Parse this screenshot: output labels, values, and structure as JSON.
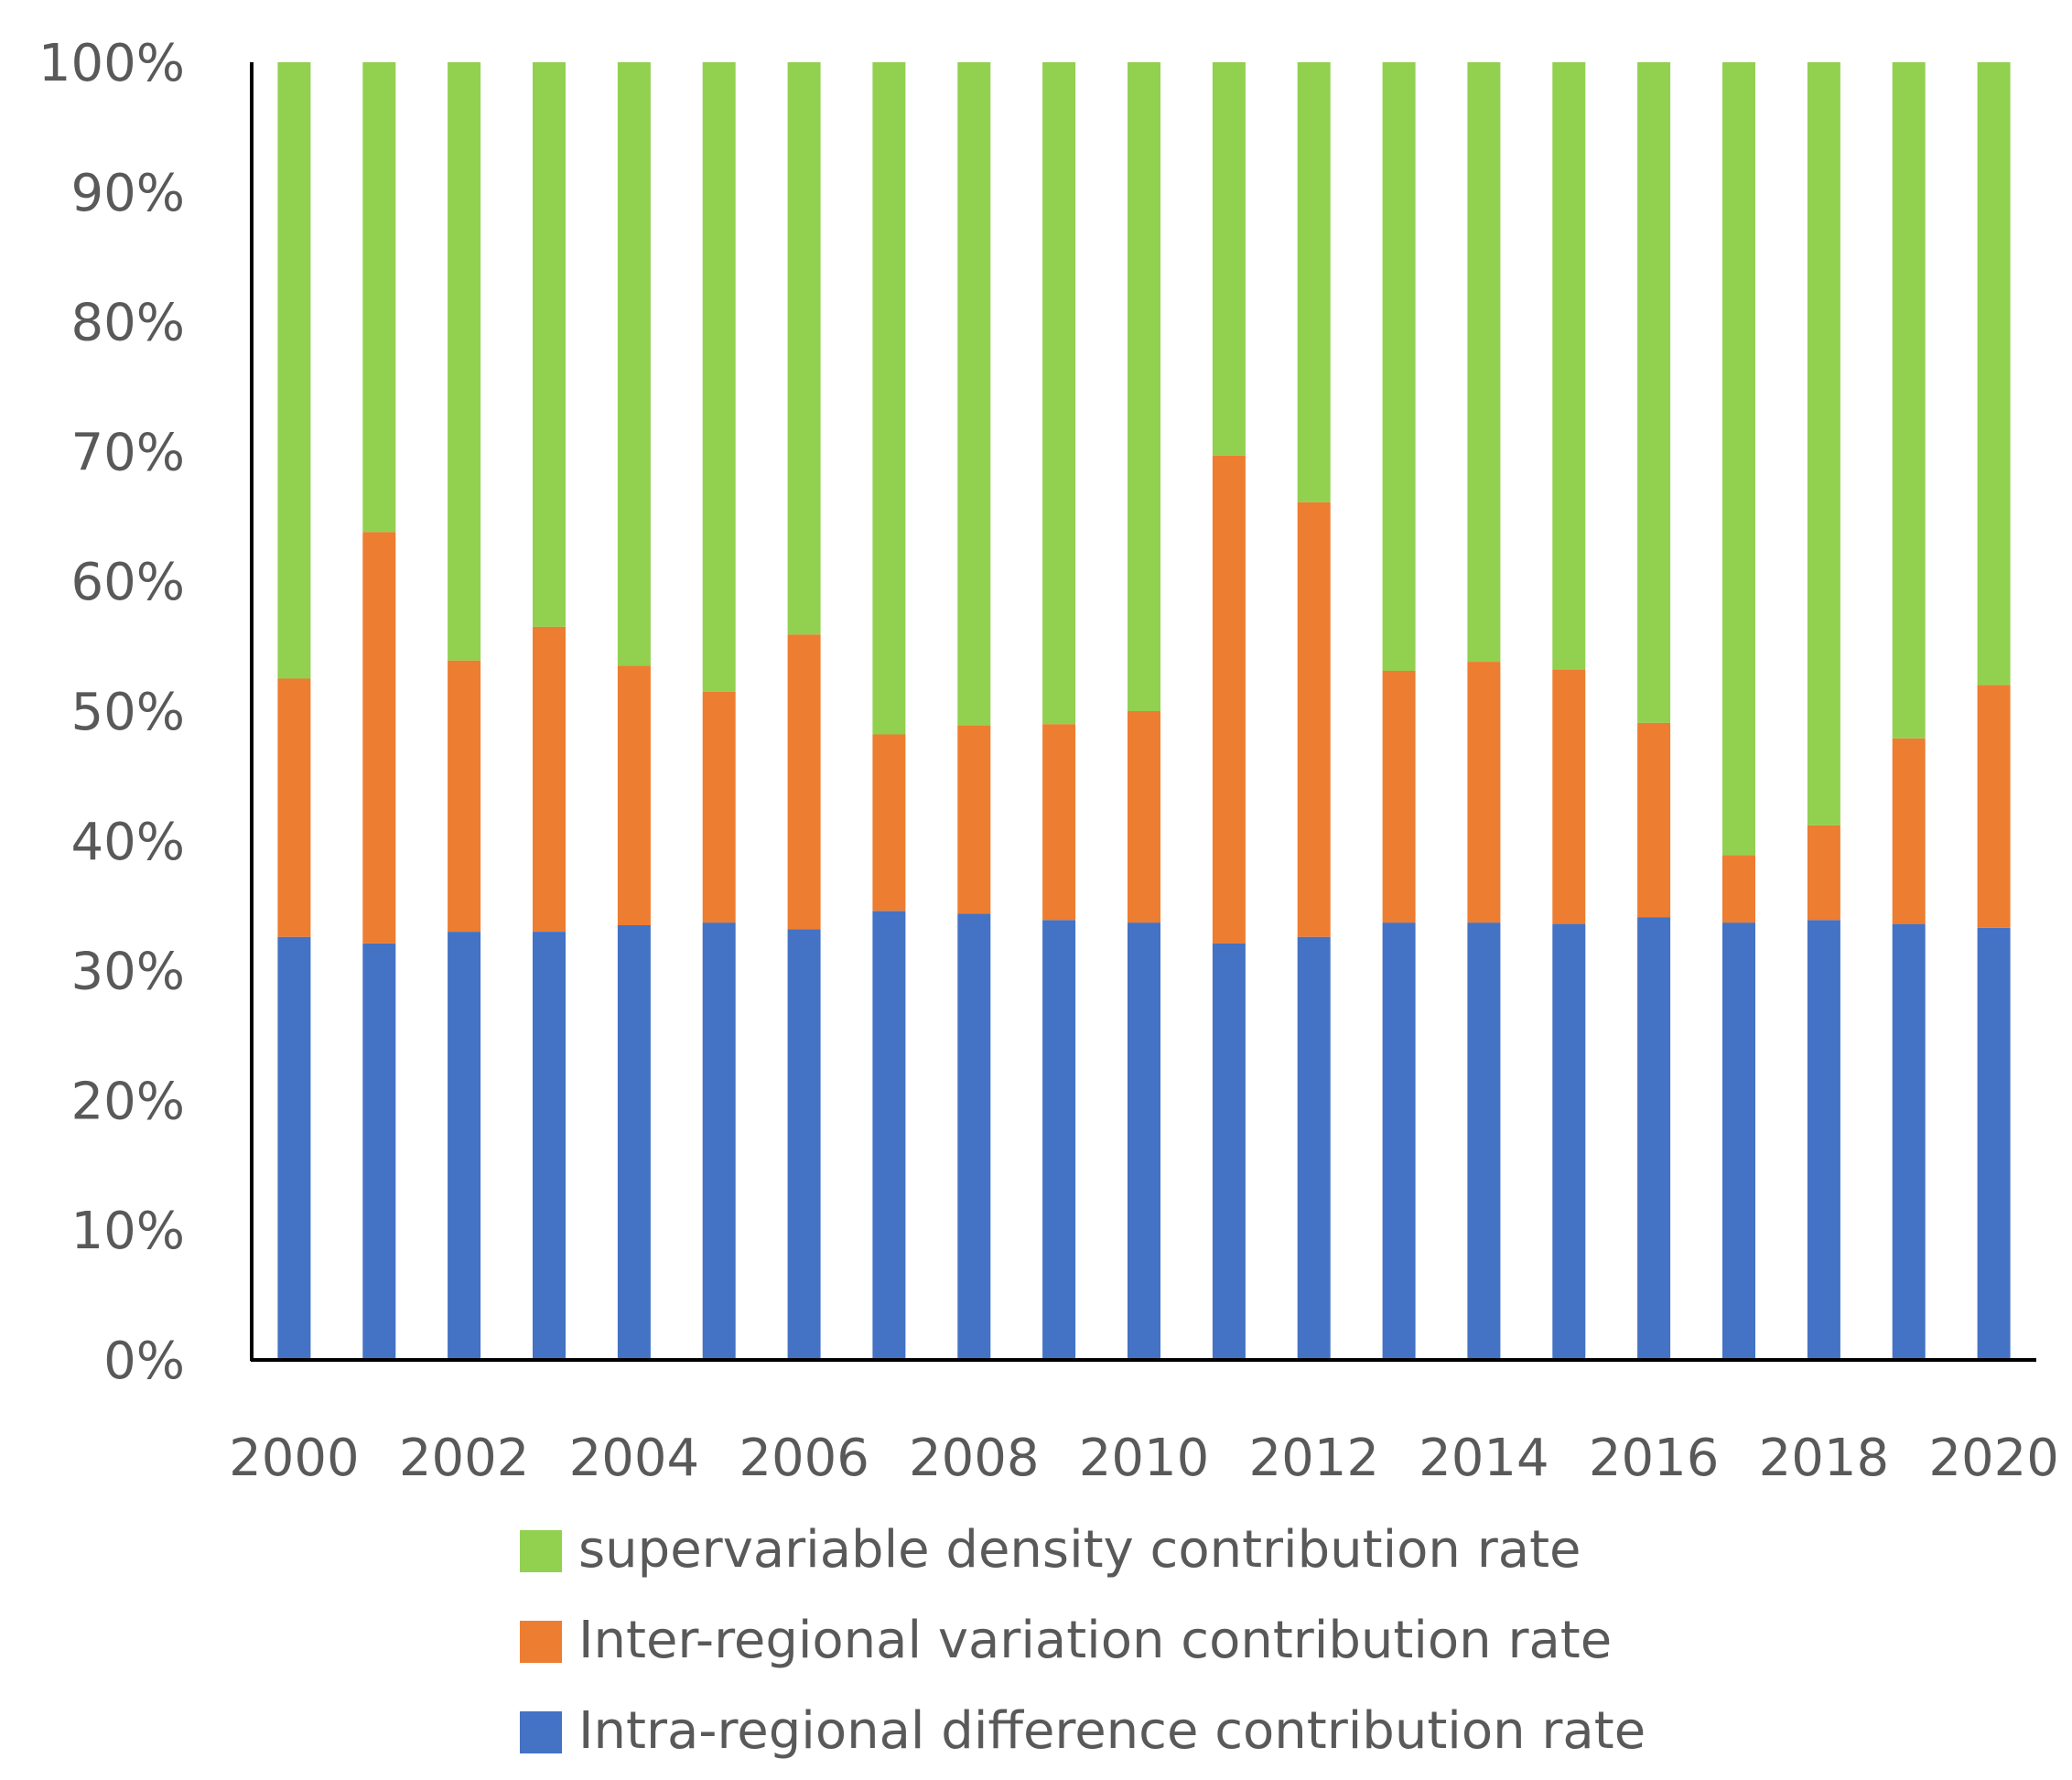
{
  "chart_data": {
    "type": "bar",
    "stacked": true,
    "percent": true,
    "title": "",
    "xlabel": "",
    "ylabel": "",
    "ylim": [
      0,
      100
    ],
    "y_ticks": [
      "0%",
      "10%",
      "20%",
      "30%",
      "40%",
      "50%",
      "60%",
      "70%",
      "80%",
      "90%",
      "100%"
    ],
    "categories": [
      "2000",
      "2001",
      "2002",
      "2003",
      "2004",
      "2005",
      "2006",
      "2007",
      "2008",
      "2009",
      "2010",
      "2011",
      "2012",
      "2013",
      "2014",
      "2015",
      "2016",
      "2017",
      "2018",
      "2019",
      "2020"
    ],
    "x_tick_labels": [
      "2000",
      "2002",
      "2004",
      "2006",
      "2008",
      "2010",
      "2012",
      "2014",
      "2016",
      "2018",
      "2020"
    ],
    "legend_position": "bottom",
    "series": [
      {
        "name": "Intra-regional difference contribution rate",
        "color": "#4472C4",
        "values": [
          32.6,
          32.1,
          33.0,
          33.0,
          33.5,
          33.7,
          33.2,
          34.6,
          34.4,
          33.9,
          33.7,
          32.1,
          32.6,
          33.7,
          33.7,
          33.6,
          34.1,
          33.7,
          33.9,
          33.6,
          33.3
        ]
      },
      {
        "name": "Inter-regional variation contribution rate",
        "color": "#ED7D31",
        "values": [
          19.9,
          31.7,
          20.9,
          23.5,
          20.0,
          17.8,
          22.7,
          13.6,
          14.5,
          15.1,
          16.3,
          37.6,
          33.5,
          19.4,
          20.1,
          19.6,
          15.0,
          5.2,
          7.3,
          14.3,
          18.7
        ]
      },
      {
        "name": "supervariable density contribution rate",
        "color": "#92D050",
        "values": [
          47.5,
          36.2,
          46.1,
          43.5,
          46.5,
          48.5,
          44.1,
          51.8,
          51.1,
          51.0,
          50.0,
          30.3,
          33.9,
          46.9,
          46.2,
          46.8,
          50.9,
          61.1,
          58.8,
          52.1,
          48.0
        ]
      }
    ]
  }
}
